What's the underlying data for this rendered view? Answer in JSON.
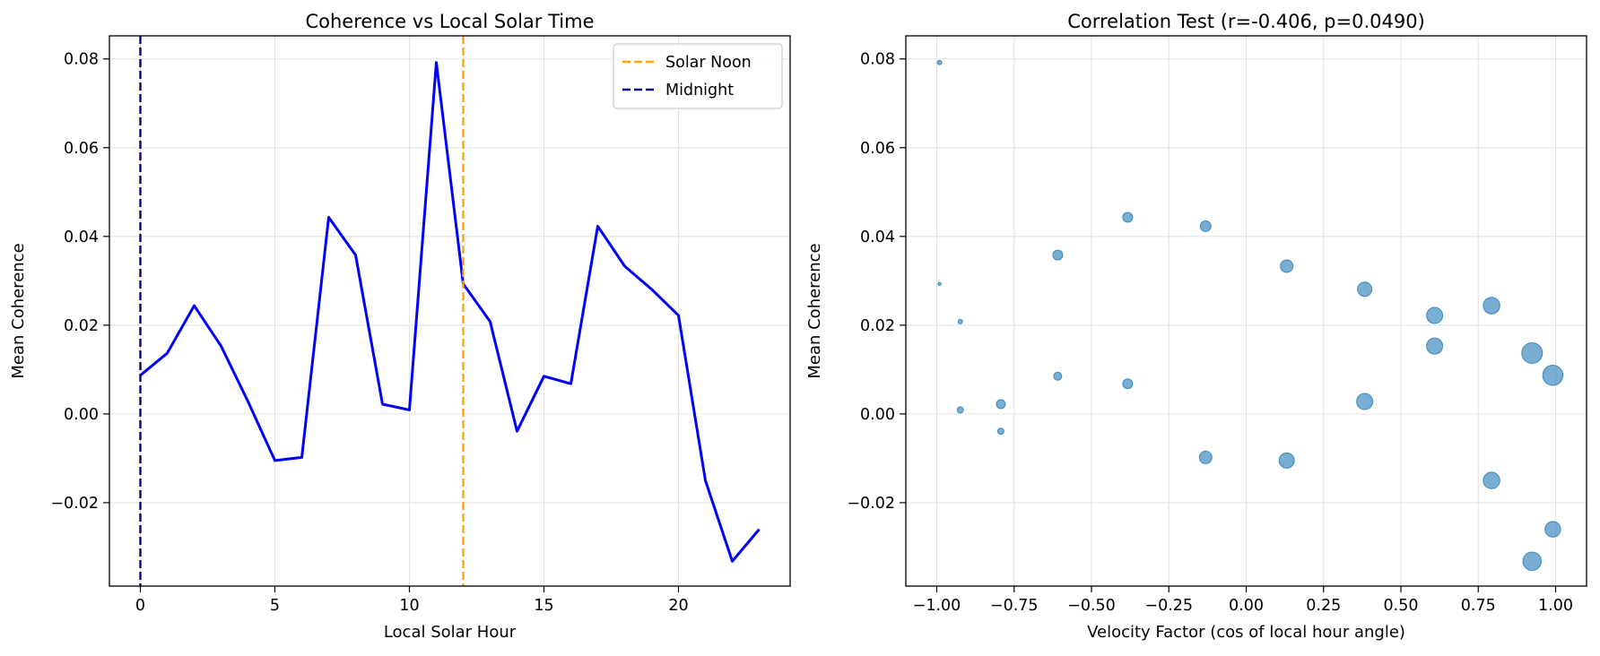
{
  "chart_data": [
    {
      "type": "line",
      "title": "Coherence vs Local Solar Time",
      "xlabel": "Local Solar Hour",
      "ylabel": "Mean Coherence",
      "xlim": [
        -1.15,
        24.15
      ],
      "ylim": [
        -0.0388,
        0.0852
      ],
      "xticks": [
        0,
        5,
        10,
        15,
        20
      ],
      "xtick_labels": [
        "0",
        "5",
        "10",
        "15",
        "20"
      ],
      "yticks": [
        -0.02,
        0.0,
        0.02,
        0.04,
        0.06,
        0.08
      ],
      "ytick_labels": [
        "−0.02",
        "0.00",
        "0.02",
        "0.04",
        "0.06",
        "0.08"
      ],
      "grid": true,
      "legend_position": "upper right",
      "series": [
        {
          "color": "#0000ff",
          "x": [
            0,
            1,
            2,
            3,
            4,
            5,
            6,
            7,
            8,
            9,
            10,
            11,
            12,
            13,
            14,
            15,
            16,
            17,
            18,
            19,
            20,
            21,
            22,
            23
          ],
          "values": [
            0.0087,
            0.0137,
            0.0244,
            0.0153,
            0.0028,
            -0.0105,
            -0.0098,
            0.0443,
            0.0358,
            0.0022,
            0.0009,
            0.0792,
            0.0293,
            0.0208,
            -0.0039,
            0.0085,
            0.0068,
            0.0423,
            0.0333,
            0.0281,
            0.0222,
            -0.015,
            -0.0332,
            -0.026
          ]
        }
      ],
      "vlines": [
        {
          "name": "Solar Noon",
          "x": 12,
          "color": "#ffa500"
        },
        {
          "name": "Midnight",
          "x": 0,
          "color": "#00008b"
        }
      ]
    },
    {
      "type": "scatter",
      "title": "Correlation Test (r=-0.406, p=0.0490)",
      "xlabel": "Velocity Factor (cos of local hour angle)",
      "ylabel": "Mean Coherence",
      "xlim": [
        -1.1,
        1.1
      ],
      "ylim": [
        -0.0388,
        0.0852
      ],
      "xticks": [
        -1.0,
        -0.75,
        -0.5,
        -0.25,
        0.0,
        0.25,
        0.5,
        0.75,
        1.0
      ],
      "xtick_labels": [
        "−1.00",
        "−0.75",
        "−0.50",
        "−0.25",
        "0.00",
        "0.25",
        "0.50",
        "0.75",
        "1.00"
      ],
      "yticks": [
        -0.02,
        0.0,
        0.02,
        0.04,
        0.06,
        0.08
      ],
      "ytick_labels": [
        "−0.02",
        "0.00",
        "0.02",
        "0.04",
        "0.06",
        "0.08"
      ],
      "grid": true,
      "color": "#1f77b4",
      "points": [
        {
          "x": -0.991,
          "y": 0.0792,
          "size": 5
        },
        {
          "x": -0.991,
          "y": 0.0293,
          "size": 3.5
        },
        {
          "x": -0.924,
          "y": 0.0208,
          "size": 5
        },
        {
          "x": -0.924,
          "y": 0.0009,
          "size": 7
        },
        {
          "x": -0.793,
          "y": 0.0022,
          "size": 10
        },
        {
          "x": -0.793,
          "y": -0.0039,
          "size": 7
        },
        {
          "x": -0.609,
          "y": 0.0358,
          "size": 11
        },
        {
          "x": -0.609,
          "y": 0.0085,
          "size": 9
        },
        {
          "x": -0.383,
          "y": 0.0443,
          "size": 11
        },
        {
          "x": -0.383,
          "y": 0.0068,
          "size": 11
        },
        {
          "x": -0.131,
          "y": 0.0423,
          "size": 12
        },
        {
          "x": -0.131,
          "y": -0.0098,
          "size": 14
        },
        {
          "x": 0.131,
          "y": 0.0333,
          "size": 14
        },
        {
          "x": 0.131,
          "y": -0.0105,
          "size": 17
        },
        {
          "x": 0.383,
          "y": 0.0281,
          "size": 16
        },
        {
          "x": 0.383,
          "y": 0.0028,
          "size": 18
        },
        {
          "x": 0.609,
          "y": 0.0222,
          "size": 18
        },
        {
          "x": 0.609,
          "y": 0.0153,
          "size": 18
        },
        {
          "x": 0.793,
          "y": 0.0244,
          "size": 18.5
        },
        {
          "x": 0.793,
          "y": -0.015,
          "size": 18.5
        },
        {
          "x": 0.924,
          "y": 0.0137,
          "size": 23
        },
        {
          "x": 0.924,
          "y": -0.0332,
          "size": 20.5
        },
        {
          "x": 0.991,
          "y": 0.0087,
          "size": 22.5
        },
        {
          "x": 0.991,
          "y": -0.026,
          "size": 17.5
        }
      ]
    }
  ]
}
